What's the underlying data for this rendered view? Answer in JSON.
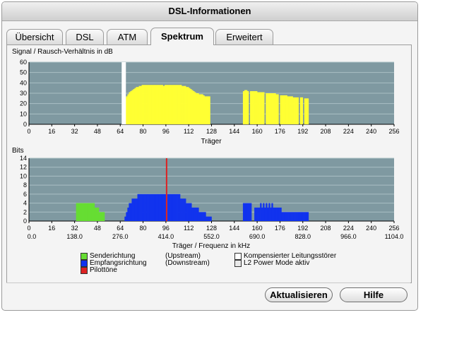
{
  "window": {
    "title": "DSL-Informationen"
  },
  "tabs": [
    {
      "label": "Übersicht",
      "active": false
    },
    {
      "label": "DSL",
      "active": false
    },
    {
      "label": "ATM",
      "active": false
    },
    {
      "label": "Spektrum",
      "active": true
    },
    {
      "label": "Erweitert",
      "active": false
    }
  ],
  "chart_data": [
    {
      "type": "bar",
      "title": "Signal / Rausch-Verhältnis in dB",
      "xlabel": "Träger",
      "ylabel": "",
      "xlim": [
        0,
        256
      ],
      "ylim": [
        0,
        60
      ],
      "xticks": [
        0,
        16,
        32,
        48,
        64,
        80,
        96,
        112,
        128,
        144,
        160,
        176,
        192,
        208,
        224,
        240,
        256
      ],
      "yticks": [
        0,
        10,
        20,
        30,
        40,
        50,
        60
      ],
      "grid": true,
      "background": "#7f99a1",
      "bar_color": "#ffff33",
      "pilot_color": "#ffffff",
      "pilot": {
        "x": 65,
        "y": 60
      },
      "segments": [
        {
          "from": 66,
          "to": 69,
          "values": [
            22,
            25,
            27
          ]
        },
        {
          "from": 69,
          "to": 72,
          "values": [
            29,
            31,
            32
          ]
        },
        {
          "from": 72,
          "to": 75,
          "values": [
            33,
            34,
            35
          ]
        },
        {
          "from": 75,
          "to": 78,
          "values": [
            36,
            36,
            37
          ]
        },
        {
          "from": 78,
          "to": 84,
          "values": [
            37,
            38,
            38,
            38,
            38,
            38
          ]
        },
        {
          "from": 84,
          "to": 90,
          "values": [
            38,
            38,
            38,
            38,
            38,
            38
          ]
        },
        {
          "from": 90,
          "to": 95,
          "values": [
            38,
            38,
            38,
            38,
            37
          ]
        },
        {
          "from": 95,
          "to": 101,
          "values": [
            38,
            38,
            38,
            38,
            38,
            38
          ]
        },
        {
          "from": 101,
          "to": 107,
          "values": [
            38,
            38,
            38,
            38,
            38,
            38
          ]
        },
        {
          "from": 107,
          "to": 112,
          "values": [
            37,
            37,
            37,
            36,
            36
          ]
        },
        {
          "from": 112,
          "to": 117,
          "values": [
            35,
            34,
            33,
            32,
            31
          ]
        },
        {
          "from": 117,
          "to": 123,
          "values": [
            30,
            30,
            29,
            29,
            29,
            28
          ]
        },
        {
          "from": 123,
          "to": 127,
          "values": [
            27,
            27,
            27,
            27
          ]
        },
        {
          "from": 150,
          "to": 154,
          "values": [
            32,
            33,
            33,
            32
          ]
        },
        {
          "from": 155,
          "to": 160,
          "values": [
            32,
            32,
            32,
            32,
            32
          ]
        },
        {
          "from": 160,
          "to": 165,
          "values": [
            31,
            31,
            31,
            31,
            31
          ]
        },
        {
          "from": 166,
          "to": 171,
          "values": [
            30,
            30,
            30,
            30,
            30
          ]
        },
        {
          "from": 171,
          "to": 175,
          "values": [
            30,
            30,
            29,
            29
          ]
        },
        {
          "from": 176,
          "to": 181,
          "values": [
            28,
            28,
            28,
            28,
            28
          ]
        },
        {
          "from": 181,
          "to": 186,
          "values": [
            27,
            27,
            27,
            27,
            26
          ]
        },
        {
          "from": 186,
          "to": 189,
          "values": [
            26,
            26,
            26
          ]
        },
        {
          "from": 190,
          "to": 192,
          "values": [
            26,
            26
          ]
        },
        {
          "from": 193,
          "to": 196,
          "values": [
            25,
            25,
            25
          ]
        }
      ]
    },
    {
      "type": "bar",
      "title": "Bits",
      "xlabel": "Träger / Frequenz in kHz",
      "ylabel": "",
      "xlim": [
        0,
        256
      ],
      "ylim": [
        0,
        14
      ],
      "xticks": [
        0,
        16,
        32,
        48,
        64,
        80,
        96,
        112,
        128,
        144,
        160,
        176,
        192,
        208,
        224,
        240,
        256
      ],
      "freq_ticks": [
        "0.0",
        "138.0",
        "276.0",
        "414.0",
        "552.0",
        "690.0",
        "828.0",
        "966.0",
        "1104.0"
      ],
      "yticks": [
        0,
        2,
        4,
        6,
        8,
        10,
        12,
        14
      ],
      "grid": true,
      "background": "#7f99a1",
      "pilot_color": "#dd2222",
      "pilot": {
        "x": 96,
        "y": 14
      },
      "upstream": {
        "color": "#66dd33",
        "segments": [
          {
            "from": 33,
            "to": 46,
            "values": [
              4,
              4,
              4,
              4,
              4,
              4,
              4,
              4,
              4,
              4,
              4,
              4,
              4
            ]
          },
          {
            "from": 46,
            "to": 49,
            "values": [
              3,
              3,
              3
            ]
          },
          {
            "from": 49,
            "to": 53,
            "values": [
              2,
              2,
              2,
              2
            ]
          }
        ]
      },
      "downstream": {
        "color": "#1133ee",
        "segments": [
          {
            "from": 67,
            "to": 72,
            "values": [
              1,
              2,
              3,
              4,
              4
            ]
          },
          {
            "from": 72,
            "to": 76,
            "values": [
              5,
              5,
              5,
              5
            ]
          },
          {
            "from": 76,
            "to": 96,
            "values": [
              6,
              6,
              6,
              6,
              6,
              6,
              6,
              6,
              6,
              6,
              6,
              6,
              6,
              6,
              6,
              6,
              6,
              6,
              6,
              6
            ]
          },
          {
            "from": 97,
            "to": 106,
            "values": [
              6,
              6,
              6,
              6,
              6,
              6,
              6,
              6,
              6
            ]
          },
          {
            "from": 106,
            "to": 110,
            "values": [
              5,
              5,
              5,
              5
            ]
          },
          {
            "from": 110,
            "to": 114,
            "values": [
              4,
              4,
              4,
              4
            ]
          },
          {
            "from": 114,
            "to": 119,
            "values": [
              3,
              3,
              3,
              3,
              3
            ]
          },
          {
            "from": 119,
            "to": 124,
            "values": [
              2,
              2,
              2,
              2,
              2
            ]
          },
          {
            "from": 124,
            "to": 128,
            "values": [
              1,
              1,
              1,
              1
            ]
          },
          {
            "from": 150,
            "to": 156,
            "values": [
              4,
              4,
              4,
              4,
              4,
              4
            ]
          },
          {
            "from": 158,
            "to": 162,
            "values": [
              3,
              3,
              3,
              3
            ]
          },
          {
            "from": 162,
            "to": 172,
            "values": [
              4,
              3,
              4,
              3,
              4,
              3,
              4,
              3,
              4,
              3
            ]
          },
          {
            "from": 172,
            "to": 177,
            "values": [
              3,
              3,
              3,
              3,
              3
            ]
          },
          {
            "from": 177,
            "to": 183,
            "values": [
              2,
              2,
              2,
              2,
              2,
              2
            ]
          },
          {
            "from": 183,
            "to": 186,
            "values": [
              2,
              2,
              2
            ]
          },
          {
            "from": 186,
            "to": 196,
            "values": [
              2,
              2,
              2,
              2,
              2,
              2,
              2,
              2,
              2,
              2
            ]
          }
        ]
      }
    }
  ],
  "legend": [
    {
      "label": "Senderichtung",
      "note": "(Upstream)",
      "color": "#66dd33"
    },
    {
      "label": "Empfangsrichtung",
      "note": "(Downstream)",
      "color": "#1133ee"
    },
    {
      "label": "Pilottöne",
      "note": "",
      "color": "#dd2222"
    },
    {
      "label": "Kompensierter Leitungsstörer",
      "note": "",
      "color": "#ffffff"
    },
    {
      "label": "L2 Power Mode aktiv",
      "note": "",
      "color": "#e8e8e8"
    }
  ],
  "buttons": {
    "refresh": "Aktualisieren",
    "help": "Hilfe"
  }
}
